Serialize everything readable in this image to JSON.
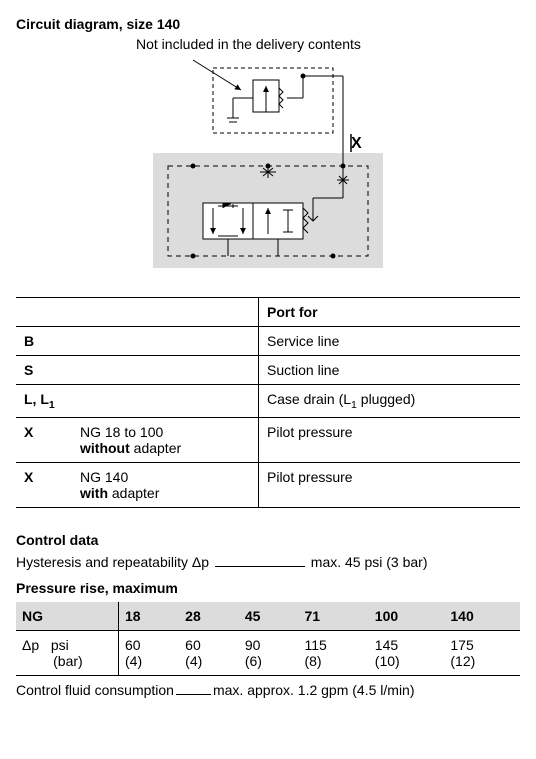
{
  "title": "Circuit diagram, size 140",
  "subnote": "Not included in the delivery contents",
  "diagram": {
    "label_X": "X",
    "colors": {
      "block_fill": "#dcdcdc",
      "stroke": "#000000"
    }
  },
  "port_table": {
    "header": "Port for",
    "rows": [
      {
        "c1": "B",
        "c2": "",
        "c3": "Service line"
      },
      {
        "c1": "S",
        "c2": "",
        "c3": "Suction line"
      },
      {
        "c1_html": "L, L<sub>1</sub>",
        "c2": "",
        "c3_html": "Case drain (L<sub>1</sub> plugged)"
      },
      {
        "c1": "X",
        "c2_html": "NG 18 to 100<br><span class=\"bold\">without</span> adapter",
        "c3": "Pilot pressure"
      },
      {
        "c1": "X",
        "c2_html": "NG 140<br><span class=\"bold\">with</span> adapter",
        "c3": "Pilot pressure"
      }
    ]
  },
  "control_data": {
    "title": "Control data",
    "hysteresis_label": "Hysteresis and repeatability Δp",
    "hysteresis_value": "max. 45 psi (3 bar)",
    "pressure_rise_title": "Pressure rise, maximum",
    "ng_label": "NG",
    "dp_label": "Δp",
    "unit1": "psi",
    "unit2": "(bar)",
    "sizes": [
      "18",
      "28",
      "45",
      "71",
      "100",
      "140"
    ],
    "psi": [
      "60",
      "60",
      "90",
      "115",
      "145",
      "175"
    ],
    "bar": [
      "(4)",
      "(4)",
      "(6)",
      "(8)",
      "(10)",
      "(12)"
    ],
    "fluid_label": "Control fluid consumption",
    "fluid_value": "max. approx. 1.2 gpm (4.5 l/min)"
  }
}
